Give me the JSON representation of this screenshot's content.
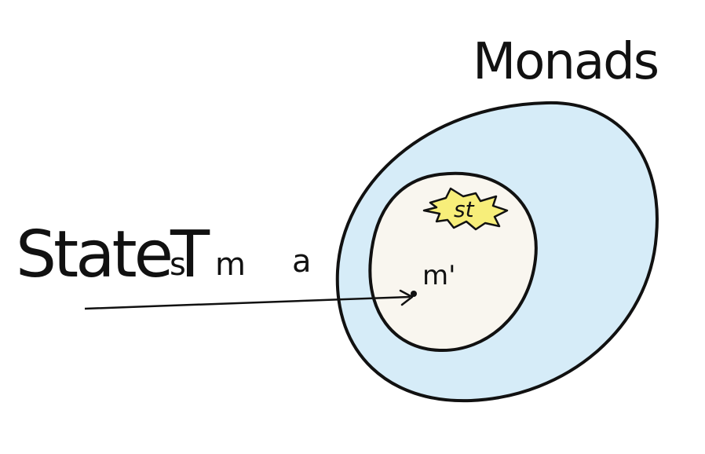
{
  "title": "Monads",
  "expression": {
    "type_constructor": "StateT",
    "args": [
      "s",
      "m",
      "a"
    ]
  },
  "inner_point_label": "m'",
  "st_label": "st",
  "colors": {
    "outer_fill": "#d6ecf8",
    "inner_fill": "#f9f6ef",
    "st_fill": "#f7ee7a",
    "stroke": "#111111"
  }
}
